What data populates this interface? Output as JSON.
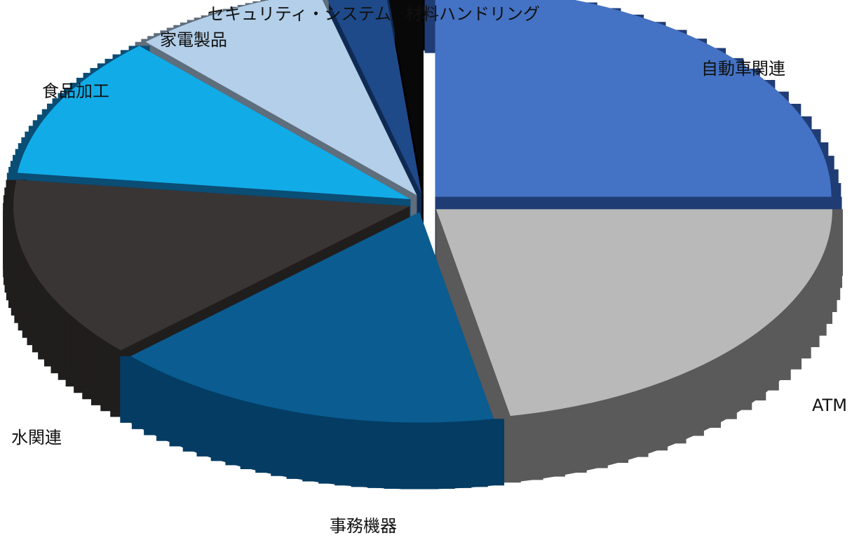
{
  "chart_data": {
    "type": "pie",
    "categories": [
      "自動車関連",
      "ATM",
      "事務機器",
      "水関連",
      "食品加工",
      "家電製品",
      "セキュリティ・システム",
      "材料ハンドリング"
    ],
    "values": [
      25,
      22,
      16,
      14,
      11,
      8,
      2.5,
      1.5
    ],
    "colors": [
      "#4472c4",
      "#b9b9b9",
      "#0a5c91",
      "#3a3535",
      "#11ace8",
      "#b3cfe9",
      "#1f4a8a",
      "#080808"
    ],
    "side_colors": [
      "#203c74",
      "#5a5a5a",
      "#043c63",
      "#201d1d",
      "#0a4d75",
      "#5f6e7c",
      "#0f2a52",
      "#000000"
    ],
    "style": "3d-exploded",
    "legend": "none"
  }
}
